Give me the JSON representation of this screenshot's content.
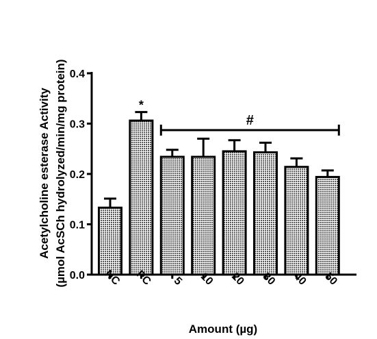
{
  "chart_data": {
    "type": "bar",
    "title": "",
    "ylabel_line1": "Acetylcholine esterase Activity",
    "ylabel_line2": "(µmol AcSCh hydrolyzed/min/mg protein)",
    "xlabel": "Amount (µg)",
    "categories": [
      "NC",
      "PC",
      "5",
      "10",
      "20",
      "30",
      "40",
      "50"
    ],
    "values": [
      0.133,
      0.306,
      0.234,
      0.234,
      0.245,
      0.243,
      0.214,
      0.194
    ],
    "errors": [
      0.018,
      0.017,
      0.014,
      0.036,
      0.022,
      0.019,
      0.017,
      0.013
    ],
    "ylim": [
      0,
      0.4
    ],
    "yticks": [
      "0.0",
      "0.1",
      "0.2",
      "0.3",
      "0.4"
    ],
    "ytick_values": [
      0,
      0.1,
      0.2,
      0.3,
      0.4
    ],
    "annotations": {
      "pc_marker": "*",
      "group_marker": "#"
    },
    "bar_fill": "#9a9a9a",
    "bar_stroke": "#000000"
  }
}
